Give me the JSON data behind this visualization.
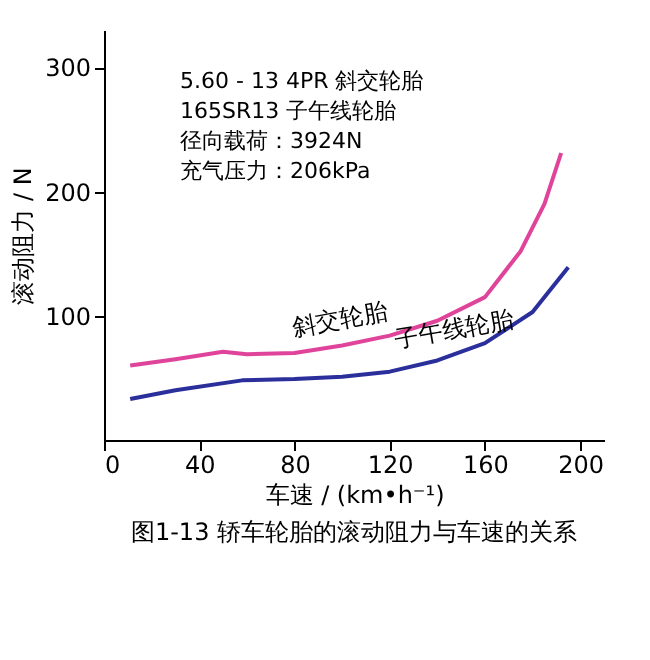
{
  "chart_data": {
    "type": "line",
    "title": "图1-13    轿车轮胎的滚动阻力与车速的关系",
    "xlabel": "车速 / (km•h⁻¹)",
    "ylabel": "滚动阻力 / N",
    "series": [
      {
        "color": "#e0449a",
        "x": [
          11,
          30,
          50,
          60,
          80,
          100,
          120,
          140,
          160,
          175,
          185,
          192
        ],
        "values": [
          60,
          65,
          71,
          69,
          70,
          76,
          84,
          96,
          115,
          152,
          190,
          231
        ]
      },
      {
        "color": "#2a2f9c",
        "x": [
          11,
          30,
          58,
          80,
          100,
          120,
          140,
          160,
          180,
          195
        ],
        "values": [
          33,
          40,
          48,
          49,
          51,
          55,
          64,
          78,
          103,
          139
        ]
      }
    ],
    "annotations": [
      "5.60 - 13    4PR  斜交轮胎",
      "165SR13      子午线轮胎",
      "径向载荷：3924N",
      "充气压力：206kPa",
      {
        "text": "斜交轮胎",
        "x": 100,
        "y": 86
      },
      {
        "text": "子午线轮胎",
        "x": 148,
        "y": 78
      }
    ],
    "xlim": [
      0,
      210
    ],
    "xticks": [
      0,
      40,
      80,
      120,
      160,
      200
    ],
    "ylim": [
      0,
      330
    ],
    "yticks": [
      100,
      200,
      300
    ],
    "grid": false,
    "marker": "none",
    "line_style": "solid"
  }
}
